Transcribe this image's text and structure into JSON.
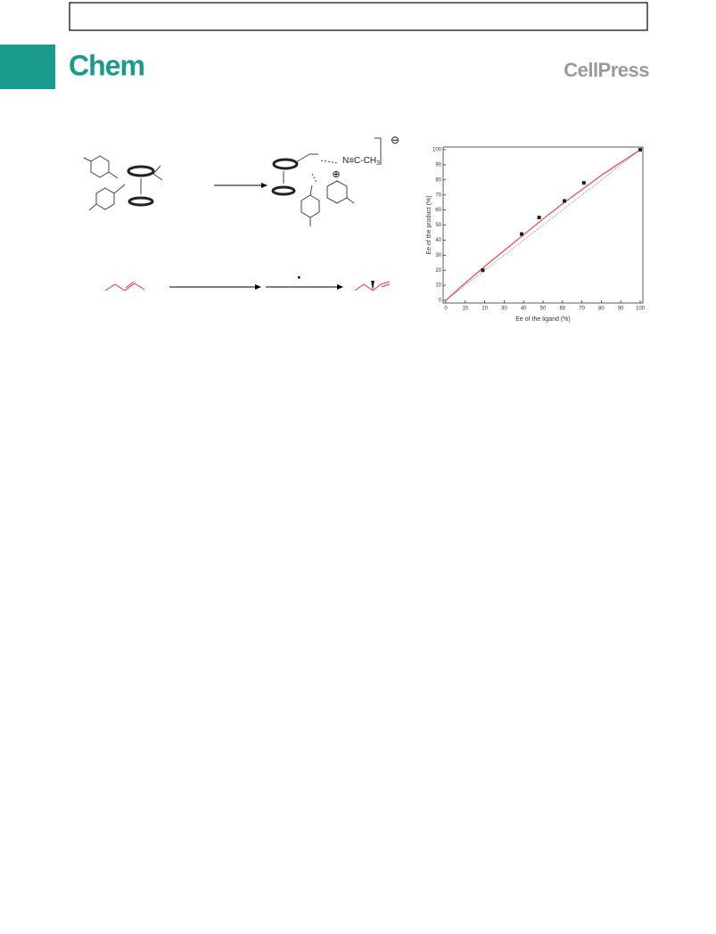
{
  "header": {
    "journal": "Chem",
    "publisher": "CellPress"
  },
  "scheme": {
    "nitrile": "N≡C-CH",
    "nitrile_subscript": "3",
    "anion": "⊖",
    "cation": "⊕"
  },
  "chart_data": {
    "type": "scatter",
    "xlabel": "Ee of the ligand (%)",
    "ylabel": "Ee of the product (%)",
    "xlim": [
      0,
      100
    ],
    "ylim": [
      0,
      100
    ],
    "xticks": [
      0,
      10,
      20,
      30,
      40,
      50,
      60,
      70,
      80,
      90,
      100
    ],
    "yticks": [
      0,
      10,
      20,
      30,
      40,
      50,
      60,
      70,
      80,
      90,
      100
    ],
    "series": [
      {
        "mode": "line",
        "dash": "dotted",
        "color": "#6f7fd8",
        "x": [
          0,
          100
        ],
        "values": [
          0,
          100
        ]
      },
      {
        "mode": "line",
        "dash": "solid",
        "color": "#e8604f",
        "x": [
          0,
          10,
          20,
          30,
          40,
          50,
          60,
          70,
          80,
          90,
          100
        ],
        "values": [
          0,
          11.5,
          22.5,
          33,
          43.5,
          54,
          64,
          73.5,
          83,
          91.5,
          100
        ]
      },
      {
        "mode": "markers",
        "color": "#222222",
        "x": [
          19,
          39,
          48,
          61,
          71,
          100
        ],
        "values": [
          20,
          44,
          55,
          66,
          78,
          100
        ]
      }
    ]
  }
}
